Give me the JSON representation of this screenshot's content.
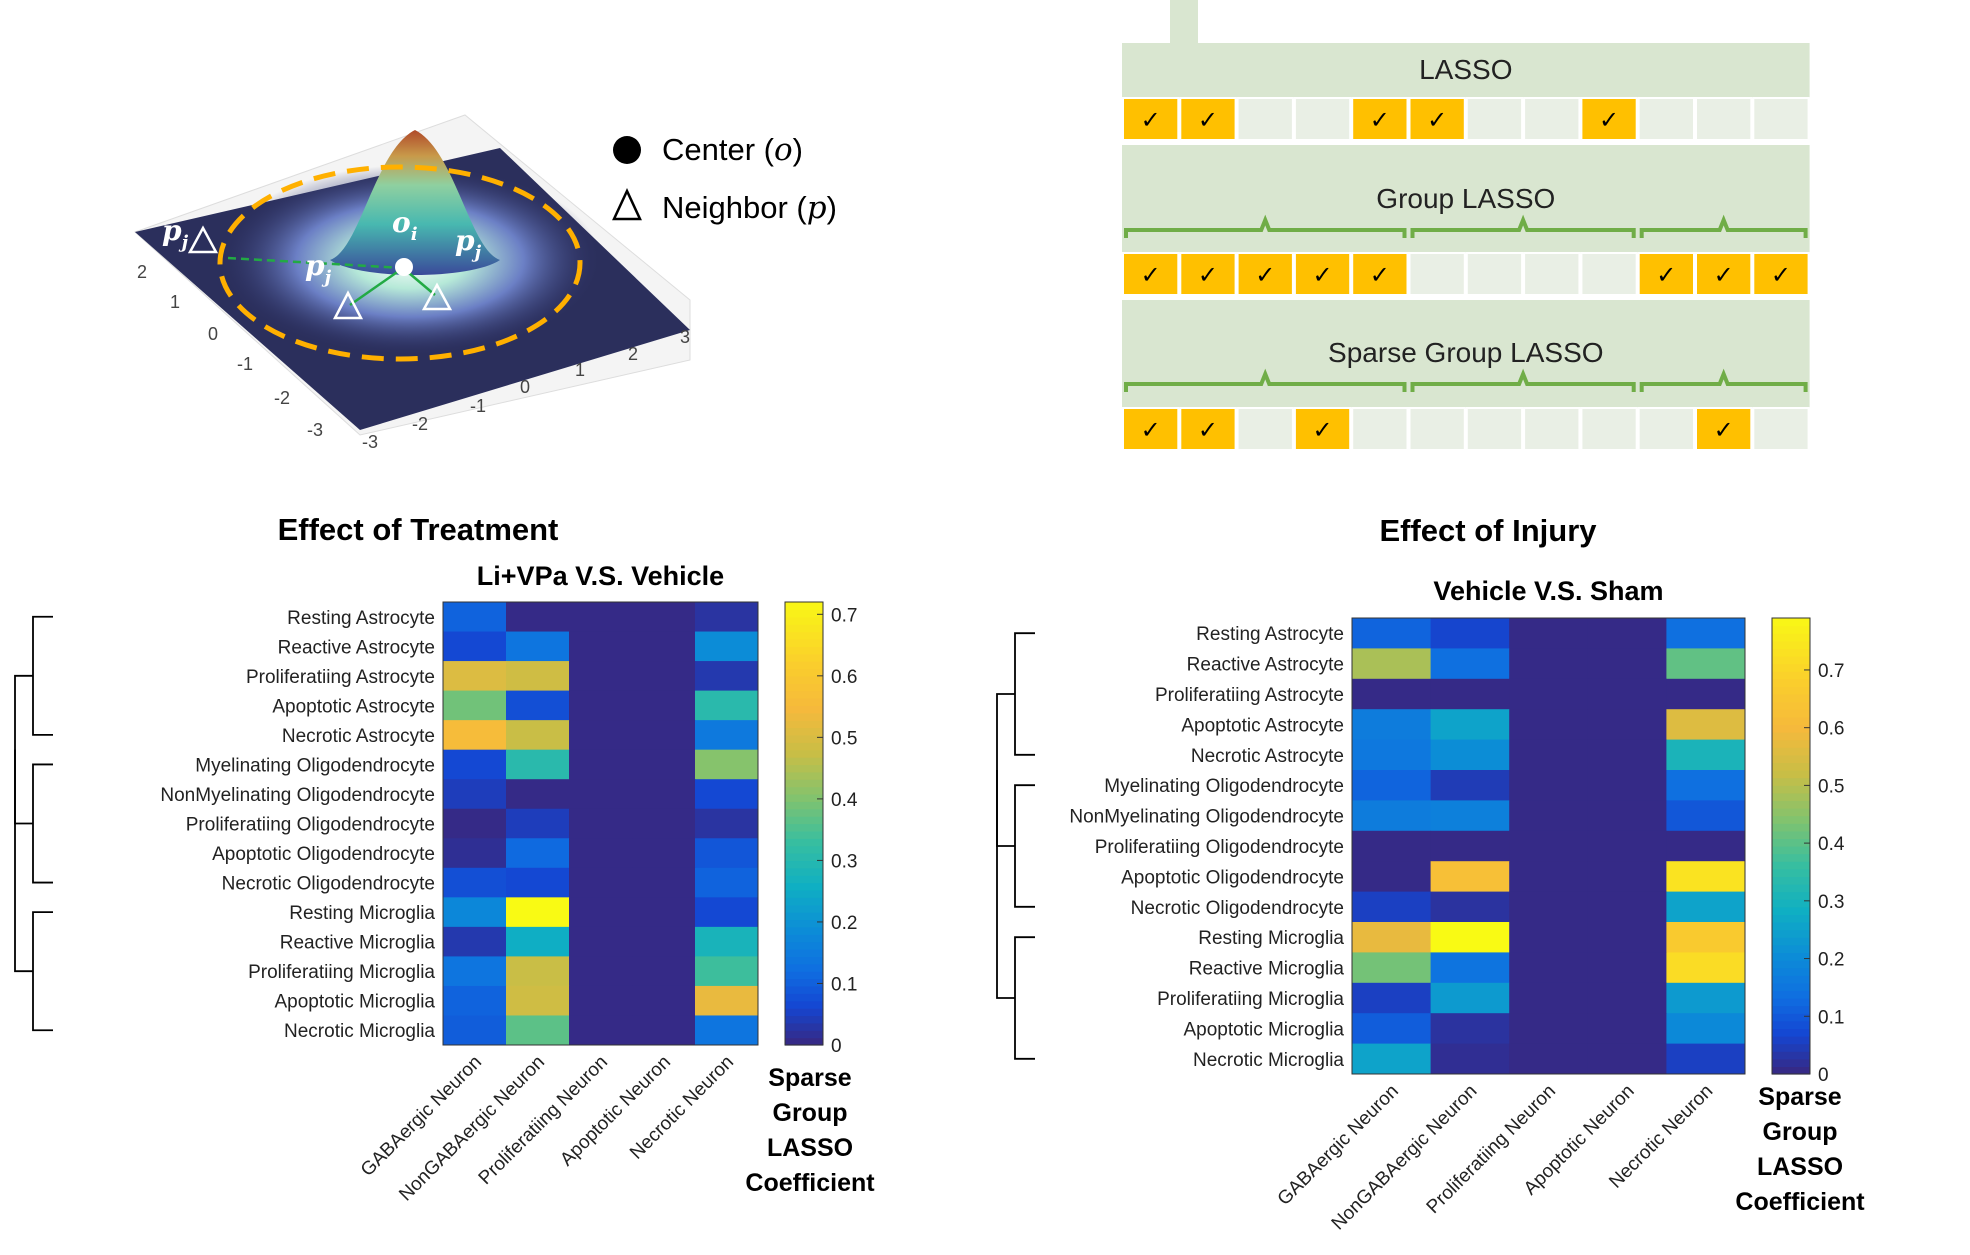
{
  "gaussian": {
    "center_label": "o",
    "center_sub": "i",
    "neighbor_label": "p",
    "neighbor_sub": "j",
    "axis_ticks_left": [
      "2",
      "1",
      "0",
      "-1",
      "-2",
      "-3"
    ],
    "axis_ticks_bottom": [
      "-3",
      "-2",
      "-1",
      "0",
      "1",
      "2",
      "3"
    ],
    "legend": [
      {
        "text": "Center (",
        "var": "o",
        "close": ")",
        "icon": "circle-icon"
      },
      {
        "text": "Neighbor (",
        "var": "p",
        "close": ")",
        "icon": "triangle-icon"
      }
    ]
  },
  "lasso_panel": {
    "lasso": {
      "title": "LASSO",
      "cells": [
        1,
        1,
        0,
        0,
        1,
        1,
        0,
        0,
        1,
        0,
        0,
        0
      ]
    },
    "group_lasso": {
      "title": "Group LASSO",
      "cells": [
        1,
        1,
        1,
        1,
        1,
        0,
        0,
        0,
        0,
        1,
        1,
        1
      ]
    },
    "sparse_group_lasso": {
      "title": "Sparse Group LASSO",
      "cells": [
        1,
        1,
        0,
        1,
        0,
        0,
        0,
        0,
        0,
        0,
        1,
        0
      ]
    },
    "check_mark": "✓",
    "colors": {
      "selected": "#FFC000",
      "band": "#D9E6D0",
      "empty": "#E9EFE5",
      "brace": "#70AD47"
    }
  },
  "chart_data": [
    {
      "type": "heatmap",
      "title": "Effect of Treatment",
      "subtitle": "Li+VPa V.S. Vehicle",
      "rows": [
        "Resting Astrocyte",
        "Reactive Astrocyte",
        "Proliferatiing Astrocyte",
        "Apoptotic Astrocyte",
        "Necrotic Astrocyte",
        "Myelinating Oligodendrocyte",
        "NonMyelinating Oligodendrocyte",
        "Proliferatiing Oligodendrocyte",
        "Apoptotic Oligodendrocyte",
        "Necrotic Oligodendrocyte",
        "Resting Microglia",
        "Reactive Microglia",
        "Proliferatiing Microglia",
        "Apoptotic Microglia",
        "Necrotic Microglia"
      ],
      "columns": [
        "GABAergic Neuron",
        "NonGABAergic Neuron",
        "Proliferatiing Neuron",
        "Apoptotic Neuron",
        "Necrotic Neuron"
      ],
      "values": [
        [
          0.1,
          0.0,
          0.0,
          0.0,
          0.02
        ],
        [
          0.06,
          0.13,
          0.0,
          0.0,
          0.18
        ],
        [
          0.5,
          0.48,
          0.0,
          0.0,
          0.03
        ],
        [
          0.38,
          0.07,
          0.0,
          0.0,
          0.3
        ],
        [
          0.55,
          0.47,
          0.0,
          0.0,
          0.14
        ],
        [
          0.06,
          0.3,
          0.0,
          0.0,
          0.4
        ],
        [
          0.04,
          0.0,
          0.0,
          0.0,
          0.06
        ],
        [
          0.0,
          0.04,
          0.0,
          0.0,
          0.02
        ],
        [
          0.01,
          0.11,
          0.0,
          0.0,
          0.08
        ],
        [
          0.07,
          0.06,
          0.0,
          0.0,
          0.1
        ],
        [
          0.17,
          0.72,
          0.0,
          0.0,
          0.06
        ],
        [
          0.03,
          0.25,
          0.0,
          0.0,
          0.27
        ],
        [
          0.13,
          0.47,
          0.0,
          0.0,
          0.33
        ],
        [
          0.1,
          0.48,
          0.0,
          0.0,
          0.52
        ],
        [
          0.09,
          0.36,
          0.0,
          0.0,
          0.13
        ]
      ],
      "colorbar": {
        "min": 0,
        "max": 0.72,
        "ticks": [
          "0",
          "0.1",
          "0.2",
          "0.3",
          "0.4",
          "0.5",
          "0.6",
          "0.7"
        ],
        "label": [
          "Sparse",
          "Group",
          "LASSO",
          "Coefficient"
        ]
      }
    },
    {
      "type": "heatmap",
      "title": "Effect of Injury",
      "subtitle": "Vehicle V.S. Sham",
      "rows": [
        "Resting Astrocyte",
        "Reactive Astrocyte",
        "Proliferatiing Astrocyte",
        "Apoptotic Astrocyte",
        "Necrotic Astrocyte",
        "Myelinating Oligodendrocyte",
        "NonMyelinating Oligodendrocyte",
        "Proliferatiing Oligodendrocyte",
        "Apoptotic Oligodendrocyte",
        "Necrotic Oligodendrocyte",
        "Resting Microglia",
        "Reactive Microglia",
        "Proliferatiing Microglia",
        "Apoptotic Microglia",
        "Necrotic Microglia"
      ],
      "columns": [
        "GABAergic Neuron",
        "NonGABAergic Neuron",
        "Proliferatiing Neuron",
        "Apoptotic Neuron",
        "Necrotic Neuron"
      ],
      "values": [
        [
          0.11,
          0.06,
          0.0,
          0.0,
          0.13
        ],
        [
          0.48,
          0.13,
          0.0,
          0.0,
          0.4
        ],
        [
          0.0,
          0.0,
          0.0,
          0.0,
          0.0
        ],
        [
          0.16,
          0.25,
          0.0,
          0.0,
          0.55
        ],
        [
          0.15,
          0.2,
          0.0,
          0.0,
          0.3
        ],
        [
          0.11,
          0.04,
          0.0,
          0.0,
          0.13
        ],
        [
          0.16,
          0.17,
          0.0,
          0.0,
          0.09
        ],
        [
          0.0,
          0.0,
          0.0,
          0.0,
          0.0
        ],
        [
          0.0,
          0.62,
          0.0,
          0.0,
          0.73
        ],
        [
          0.05,
          0.02,
          0.0,
          0.0,
          0.25
        ],
        [
          0.57,
          0.79,
          0.0,
          0.0,
          0.66
        ],
        [
          0.42,
          0.14,
          0.0,
          0.0,
          0.71
        ],
        [
          0.05,
          0.23,
          0.0,
          0.0,
          0.23
        ],
        [
          0.1,
          0.02,
          0.0,
          0.0,
          0.19
        ],
        [
          0.25,
          0.01,
          0.0,
          0.0,
          0.05
        ]
      ],
      "colorbar": {
        "min": 0,
        "max": 0.79,
        "ticks": [
          "0",
          "0.1",
          "0.2",
          "0.3",
          "0.4",
          "0.5",
          "0.6",
          "0.7"
        ],
        "label": [
          "Sparse",
          "Group",
          "LASSO",
          "Coefficient"
        ]
      }
    }
  ]
}
